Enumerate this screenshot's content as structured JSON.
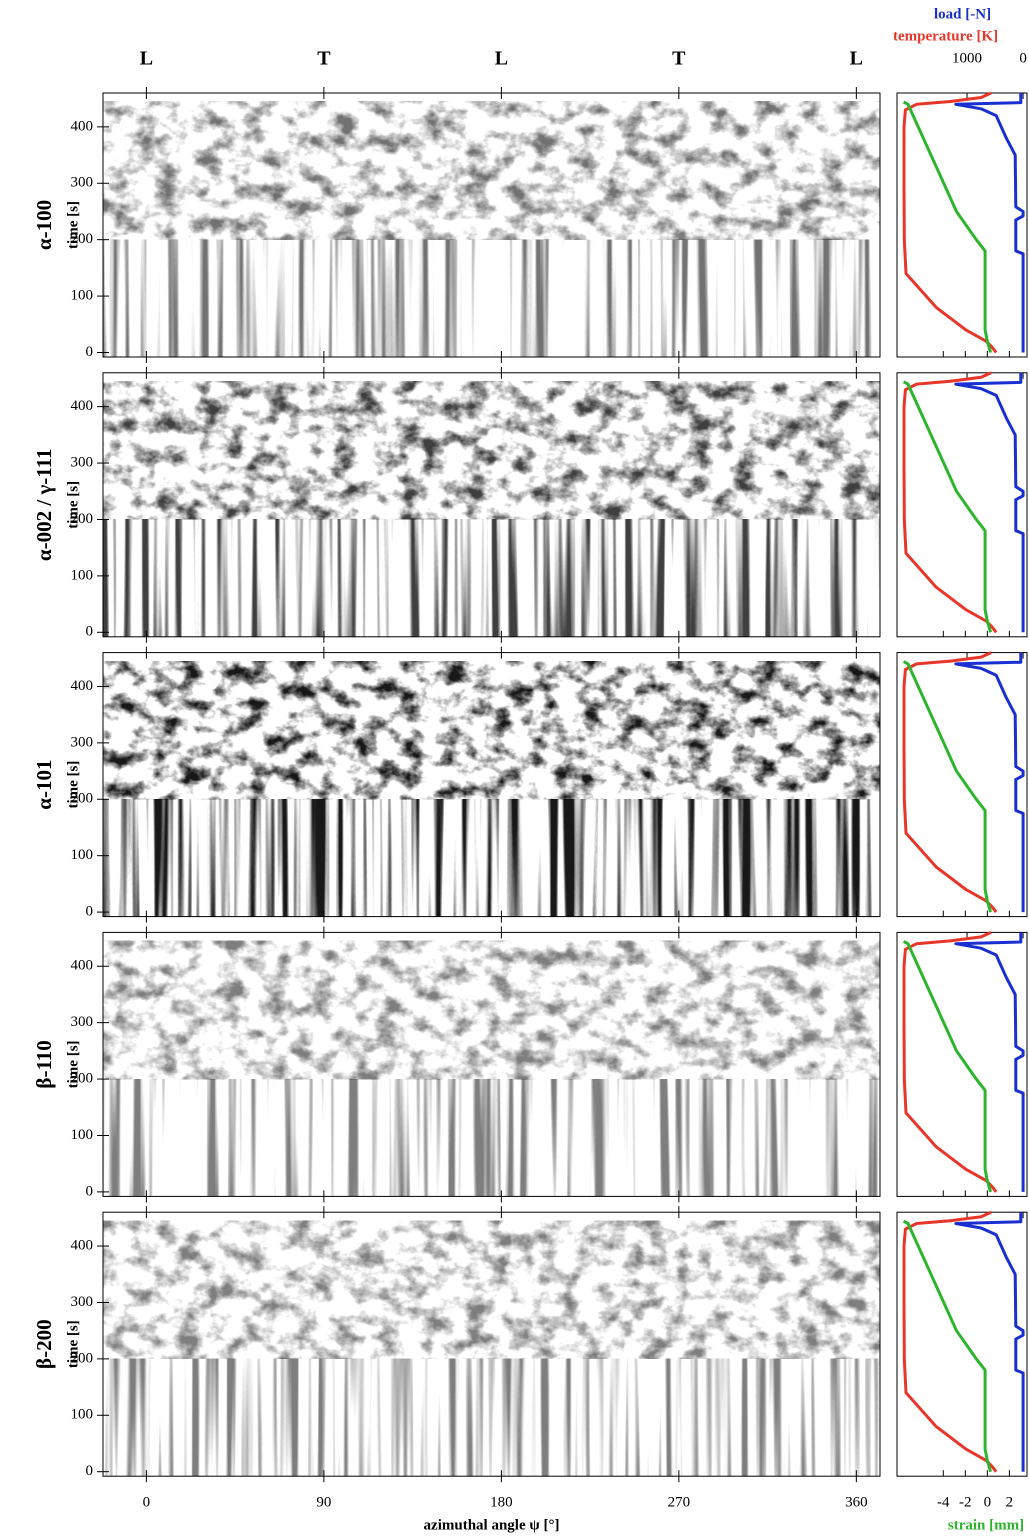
{
  "chart_data": [
    {
      "type": "heatmap",
      "panel_label": "α-100",
      "ylabel": "time [s]",
      "ylim": [
        -8,
        460
      ],
      "yticks": [
        0,
        100,
        200,
        300,
        400
      ],
      "xlim": [
        -22,
        372
      ],
      "xticks": [
        0,
        90,
        180,
        270,
        360
      ],
      "annotations": [
        {
          "text": "L",
          "x": 0
        },
        {
          "text": "T",
          "x": 90
        },
        {
          "text": "L",
          "x": 180
        },
        {
          "text": "T",
          "x": 270
        },
        {
          "text": "L",
          "x": 360
        }
      ]
    },
    {
      "type": "heatmap",
      "panel_label": "α-002 / γ-111",
      "ylabel": "time [s]",
      "ylim": [
        -8,
        460
      ],
      "yticks": [
        0,
        100,
        200,
        300,
        400
      ],
      "xlim": [
        -22,
        372
      ],
      "xticks": [
        0,
        90,
        180,
        270,
        360
      ]
    },
    {
      "type": "heatmap",
      "panel_label": "α-101",
      "ylabel": "time [s]",
      "ylim": [
        -8,
        460
      ],
      "yticks": [
        0,
        100,
        200,
        300,
        400
      ],
      "xlim": [
        -22,
        372
      ],
      "xticks": [
        0,
        90,
        180,
        270,
        360
      ]
    },
    {
      "type": "heatmap",
      "panel_label": "β-110",
      "ylabel": "time [s]",
      "ylim": [
        -8,
        460
      ],
      "yticks": [
        0,
        100,
        200,
        300,
        400
      ],
      "xlim": [
        -22,
        372
      ],
      "xticks": [
        0,
        90,
        180,
        270,
        360
      ]
    },
    {
      "type": "heatmap",
      "panel_label": "β-200",
      "ylabel": "time [s]",
      "ylim": [
        -8,
        460
      ],
      "yticks": [
        0,
        100,
        200,
        300,
        400
      ],
      "xlim": [
        -22,
        372
      ],
      "xticks": [
        0,
        90,
        180,
        270,
        360
      ],
      "xlabel": "azimuthal angle ψ [°]"
    },
    {
      "type": "line",
      "ylim": [
        -8,
        460
      ],
      "xlabel": "strain [mm]",
      "xlabel_color": "#2db52d",
      "xlim": [
        -8.2,
        3.6
      ],
      "xticks": [
        -4,
        -2,
        0,
        2
      ],
      "x2label": "temperature [K]",
      "x2label_color": "#e8372a",
      "x2lim": [
        2250,
        -70
      ],
      "x2ticks": [
        1000,
        0
      ],
      "x3label": "load [-N]",
      "x3label_color": "#1a2fd1",
      "x3lim": [
        2250,
        -70
      ],
      "series": [
        {
          "axis": "x2",
          "color": "#e8372a",
          "time": [
            0,
            10,
            20,
            40,
            80,
            140,
            200,
            300,
            400,
            430,
            440,
            445,
            452,
            460
          ],
          "values": [
            480,
            560,
            660,
            1020,
            1550,
            2090,
            2120,
            2125,
            2125,
            2100,
            1900,
            1300,
            750,
            570
          ]
        },
        {
          "axis": "x",
          "color": "#2db52d",
          "time": [
            0,
            20,
            40,
            180,
            200,
            250,
            440,
            444
          ],
          "values": [
            0.3,
            0,
            -0.2,
            -0.2,
            -1,
            -2.8,
            -7.2,
            -7.6
          ]
        },
        {
          "axis": "x3",
          "color": "#1a2fd1",
          "time": [
            0,
            175,
            180,
            235,
            242,
            250,
            258,
            350,
            380,
            420,
            432,
            440,
            443,
            460
          ],
          "values": [
            0,
            0,
            130,
            130,
            0,
            0,
            130,
            140,
            300,
            480,
            750,
            1200,
            40,
            40
          ]
        }
      ]
    }
  ]
}
